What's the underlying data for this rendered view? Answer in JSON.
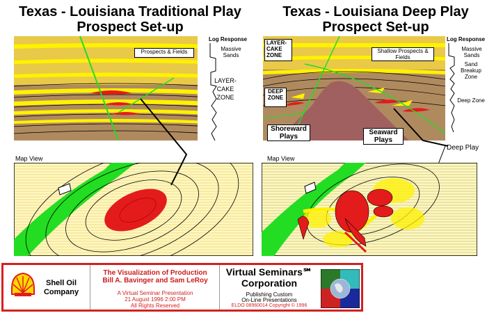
{
  "left": {
    "title_line1": "Texas - Louisiana Traditional Play",
    "title_line2": "Prospect Set-up",
    "log_response": "Log Response",
    "massive_sands": "Massive Sands",
    "prospects_fields": "Prospects & Fields",
    "layer_cake": "LAYER-CAKE ZONE",
    "map_view": "Map View"
  },
  "right": {
    "title_line1": "Texas - Louisiana Deep Play",
    "title_line2": "Prospect Set-up",
    "log_response": "Log Response",
    "massive_sands": "Massive Sands",
    "sand_breakup": "Sand Breakup Zone",
    "deep_zone_log": "Deep Zone",
    "layer_cake": "LAYER-CAKE ZONE",
    "shallow_prospects": "Shallow Prospects & Fields",
    "deep_zone": "DEEP ZONE",
    "shoreward": "Shoreward Plays",
    "seaward": "Seaward Plays",
    "deep_play": "Deep Play",
    "map_view": "Map View"
  },
  "footer": {
    "shell_name": "Shell Oil Company",
    "vis_title": "The Visualization of Production",
    "authors": "Bill A. Bavinger and Sam LeRoy",
    "presentation": "A Virtual Seminar Presentation",
    "date": "21 August 1996 2:00 PM",
    "rights": "All Rights Reserved",
    "vs_line1": "Virtual Seminars℠",
    "vs_line2": "Corporation",
    "publishing": "Publishing Custom",
    "online": "On-Line Presentations",
    "eldo": "ELDO 08960014 Copyright © 1996"
  },
  "colors": {
    "sand": "#e9c947",
    "yellow": "#fff200",
    "brown": "#b08a5f",
    "green": "#22dd22",
    "red": "#e41b1b",
    "dome": "#a06060",
    "map_bg": "#fff7c0",
    "footer_border": "#d41f1f"
  }
}
